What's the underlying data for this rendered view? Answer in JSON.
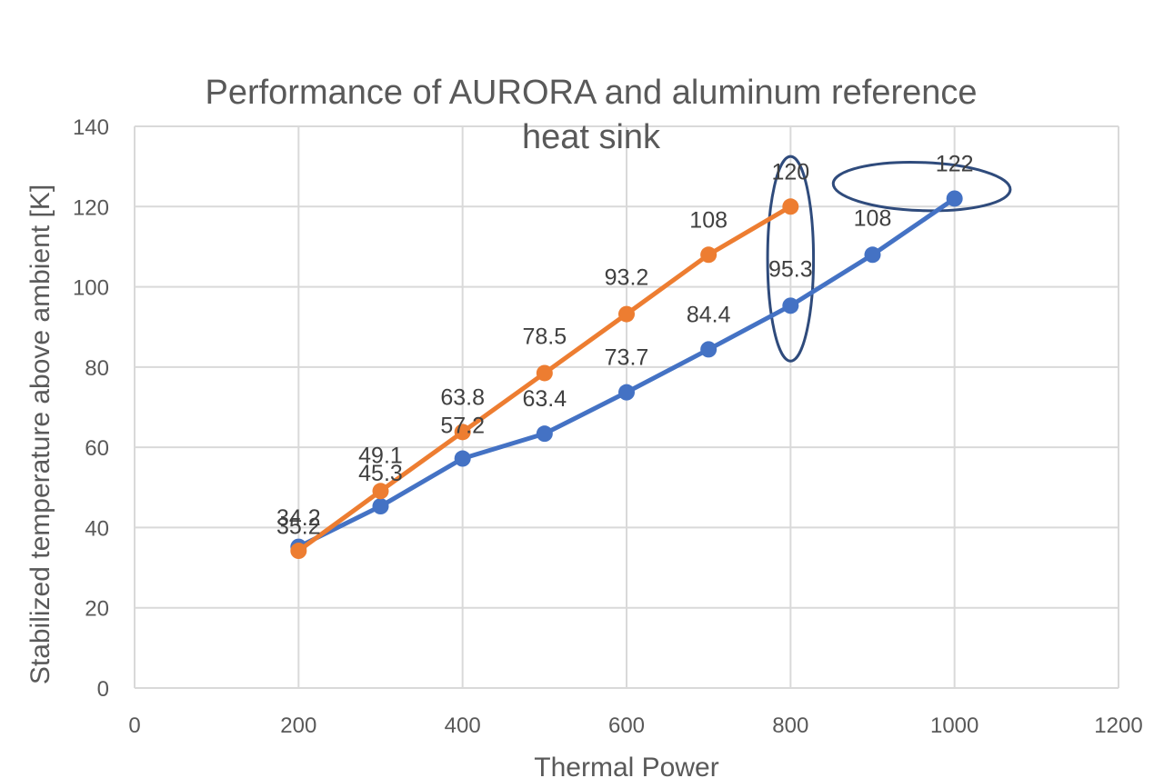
{
  "chart_data": {
    "type": "line",
    "title_lines": [
      "Performance of AURORA and aluminum reference",
      "heat sink"
    ],
    "xlabel": "Thermal Power",
    "ylabel": "Stabilized temperature above ambient [K]",
    "xlim": [
      0,
      1200
    ],
    "ylim": [
      0,
      140
    ],
    "x_ticks": [
      "0",
      "200",
      "400",
      "600",
      "800",
      "1000",
      "1200"
    ],
    "y_ticks": [
      "0",
      "20",
      "40",
      "60",
      "80",
      "100",
      "120",
      "140"
    ],
    "grid": "both",
    "legend": "none",
    "series": [
      {
        "color": "#4472c4",
        "x": [
          200,
          300,
          400,
          500,
          600,
          700,
          800,
          900,
          1000
        ],
        "values": [
          35.2,
          45.3,
          57.2,
          63.4,
          73.7,
          84.4,
          95.3,
          108,
          122
        ],
        "labels": [
          "35.2",
          "45.3",
          "57.2",
          "63.4",
          "73.7",
          "84.4",
          "95.3",
          "108",
          "122"
        ]
      },
      {
        "color": "#ed7d31",
        "x": [
          200,
          300,
          400,
          500,
          600,
          700,
          800
        ],
        "values": [
          34.2,
          49.1,
          63.8,
          78.5,
          93.2,
          108,
          120
        ],
        "labels": [
          "34.2",
          "49.1",
          "63.8",
          "78.5",
          "93.2",
          "108",
          "120"
        ]
      }
    ],
    "annotations": [
      {
        "shape": "ellipse",
        "cx_x": 800,
        "cy_y": 107,
        "rx_x": 28,
        "ry_y": 25.5,
        "color": "#2f4b7c"
      },
      {
        "shape": "ellipse",
        "cx_x": 960,
        "cy_y": 125,
        "rx_x": 108,
        "ry_y": 6,
        "color": "#2f4b7c",
        "rotate": 2
      }
    ]
  }
}
